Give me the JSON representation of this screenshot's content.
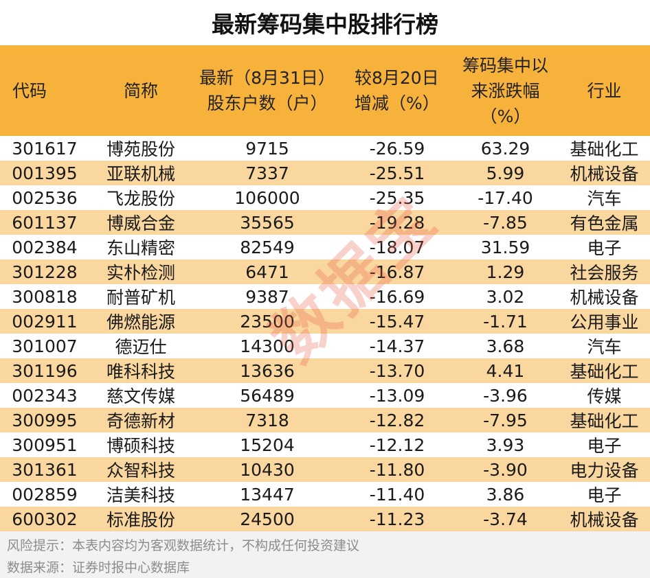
{
  "title": "最新筹码集中股排行榜",
  "headers": {
    "code": "代码",
    "name": "简称",
    "holders_line1": "最新（8月31日）",
    "holders_line2": "股东户数（户）",
    "change_line1": "较8月20日",
    "change_line2": "增减（%）",
    "gain_line1": "筹码集中以",
    "gain_line2": "来涨跌幅",
    "gain_line3": "（%）",
    "industry": "行业"
  },
  "rows": [
    {
      "code": "301617",
      "name": "博苑股份",
      "holders": "9715",
      "change": "-26.59",
      "gain": "63.29",
      "industry": "基础化工"
    },
    {
      "code": "001395",
      "name": "亚联机械",
      "holders": "7337",
      "change": "-25.51",
      "gain": "5.99",
      "industry": "机械设备"
    },
    {
      "code": "002536",
      "name": "飞龙股份",
      "holders": "106000",
      "change": "-25.35",
      "gain": "-17.40",
      "industry": "汽车"
    },
    {
      "code": "601137",
      "name": "博威合金",
      "holders": "35565",
      "change": "-19.28",
      "gain": "-7.85",
      "industry": "有色金属"
    },
    {
      "code": "002384",
      "name": "东山精密",
      "holders": "82549",
      "change": "-18.07",
      "gain": "31.59",
      "industry": "电子"
    },
    {
      "code": "301228",
      "name": "实朴检测",
      "holders": "6471",
      "change": "-16.87",
      "gain": "1.29",
      "industry": "社会服务"
    },
    {
      "code": "300818",
      "name": "耐普矿机",
      "holders": "9387",
      "change": "-16.69",
      "gain": "3.02",
      "industry": "机械设备"
    },
    {
      "code": "002911",
      "name": "佛燃能源",
      "holders": "23500",
      "change": "-15.47",
      "gain": "-1.71",
      "industry": "公用事业"
    },
    {
      "code": "301007",
      "name": "德迈仕",
      "holders": "14300",
      "change": "-14.37",
      "gain": "3.68",
      "industry": "汽车"
    },
    {
      "code": "301196",
      "name": "唯科科技",
      "holders": "13636",
      "change": "-13.70",
      "gain": "4.41",
      "industry": "基础化工"
    },
    {
      "code": "002343",
      "name": "慈文传媒",
      "holders": "56489",
      "change": "-13.09",
      "gain": "-3.96",
      "industry": "传媒"
    },
    {
      "code": "300995",
      "name": "奇德新材",
      "holders": "7318",
      "change": "-12.82",
      "gain": "-7.95",
      "industry": "基础化工"
    },
    {
      "code": "300951",
      "name": "博硕科技",
      "holders": "15204",
      "change": "-12.12",
      "gain": "3.93",
      "industry": "电子"
    },
    {
      "code": "301361",
      "name": "众智科技",
      "holders": "10430",
      "change": "-11.80",
      "gain": "-3.90",
      "industry": "电力设备"
    },
    {
      "code": "002859",
      "name": "洁美科技",
      "holders": "13447",
      "change": "-11.40",
      "gain": "3.86",
      "industry": "电子"
    },
    {
      "code": "600302",
      "name": "标准股份",
      "holders": "24500",
      "change": "-11.23",
      "gain": "-3.74",
      "industry": "机械设备"
    }
  ],
  "footer": {
    "risk_note": "风险提示：本表内容均为客观数据统计，不构成任何投资建议",
    "source": "数据来源：证券时报中心数据库"
  },
  "watermark": "数据宝",
  "colors": {
    "header_bg": "#f7b23b",
    "alt_row_bg": "#fad79e",
    "footer_bg": "#f2f2f2",
    "watermark": "#eb5a46"
  }
}
